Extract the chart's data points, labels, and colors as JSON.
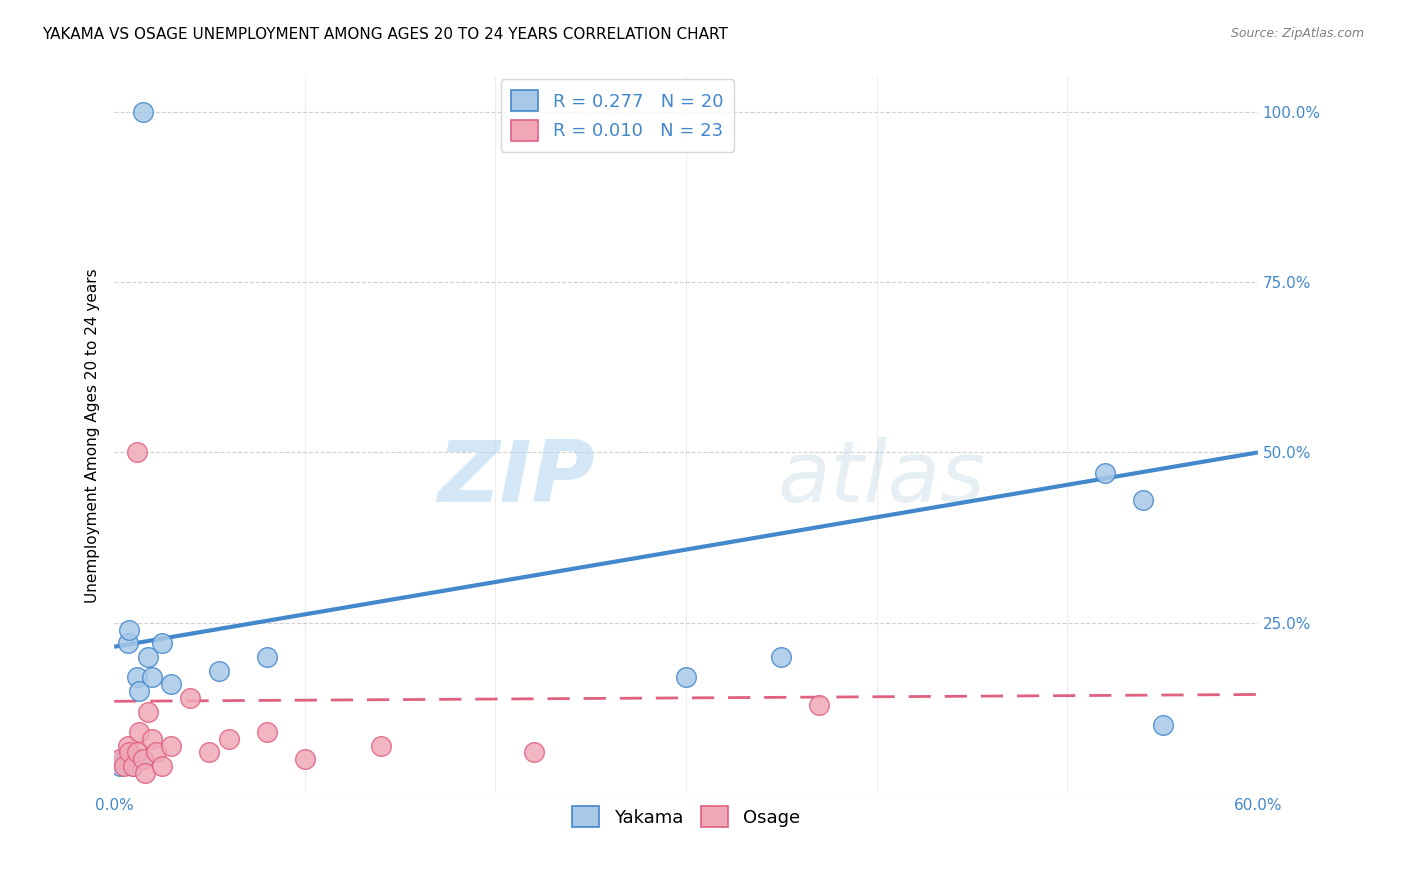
{
  "title": "YAKAMA VS OSAGE UNEMPLOYMENT AMONG AGES 20 TO 24 YEARS CORRELATION CHART",
  "source": "Source: ZipAtlas.com",
  "ylabel": "Unemployment Among Ages 20 to 24 years",
  "xlim": [
    0.0,
    0.6
  ],
  "ylim": [
    0.0,
    1.05
  ],
  "xticks": [
    0.0,
    0.1,
    0.2,
    0.3,
    0.4,
    0.5,
    0.6
  ],
  "xtick_labels": [
    "0.0%",
    "",
    "",
    "",
    "",
    "",
    "60.0%"
  ],
  "ytick_labels": [
    "",
    "25.0%",
    "50.0%",
    "75.0%",
    "100.0%"
  ],
  "ytick_positions": [
    0.0,
    0.25,
    0.5,
    0.75,
    1.0
  ],
  "yakama_R": 0.277,
  "yakama_N": 20,
  "osage_R": 0.01,
  "osage_N": 23,
  "yakama_color": "#a8c8e8",
  "yakama_line_color": "#4488cc",
  "osage_color": "#f0a8b8",
  "osage_line_color": "#e06080",
  "background_color": "#ffffff",
  "watermark_zip": "ZIP",
  "watermark_atlas": "atlas",
  "legend_entries": [
    "Yakama",
    "Osage"
  ],
  "yakama_x": [
    0.003,
    0.005,
    0.007,
    0.008,
    0.01,
    0.012,
    0.013,
    0.015,
    0.018,
    0.02,
    0.025,
    0.03,
    0.055,
    0.08,
    0.3,
    0.35,
    0.52,
    0.54,
    0.55,
    0.015
  ],
  "yakama_y": [
    0.04,
    0.05,
    0.22,
    0.24,
    0.04,
    0.17,
    0.15,
    0.05,
    0.2,
    0.17,
    0.22,
    0.16,
    0.18,
    0.2,
    0.17,
    0.2,
    0.47,
    0.43,
    0.1,
    1.0
  ],
  "osage_x": [
    0.003,
    0.005,
    0.007,
    0.008,
    0.01,
    0.012,
    0.013,
    0.015,
    0.016,
    0.018,
    0.02,
    0.022,
    0.025,
    0.03,
    0.04,
    0.05,
    0.06,
    0.08,
    0.1,
    0.14,
    0.22,
    0.37,
    0.012
  ],
  "osage_y": [
    0.05,
    0.04,
    0.07,
    0.06,
    0.04,
    0.06,
    0.09,
    0.05,
    0.03,
    0.12,
    0.08,
    0.06,
    0.04,
    0.07,
    0.14,
    0.06,
    0.08,
    0.09,
    0.05,
    0.07,
    0.06,
    0.13,
    0.5
  ],
  "title_fontsize": 11,
  "axis_label_fontsize": 11,
  "tick_fontsize": 11,
  "legend_fontsize": 13
}
